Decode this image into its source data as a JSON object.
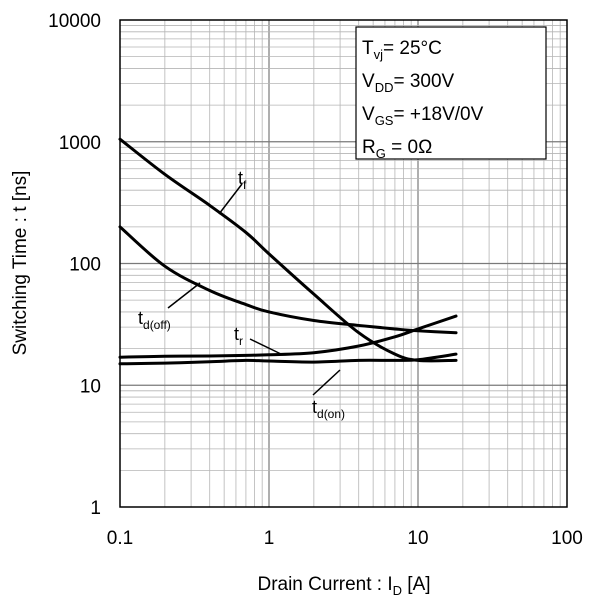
{
  "chart_data": {
    "type": "line",
    "title": "",
    "xlabel": {
      "main": "Drain Current : I",
      "sub": "D",
      "tail": " [A]"
    },
    "ylabel": "Switching Time : t [ns]",
    "x_scale": "log",
    "y_scale": "log",
    "xlim": [
      0.1,
      100
    ],
    "ylim": [
      1,
      10000
    ],
    "grid": true,
    "x_ticks": [
      "0.1",
      "1",
      "10",
      "100"
    ],
    "y_ticks": [
      "1",
      "10",
      "100",
      "1000",
      "10000"
    ],
    "conditions": [
      {
        "main": "T",
        "sub": "vj",
        "tail": "=   25°C"
      },
      {
        "main": "V",
        "sub": "DD",
        "tail": "= 300V"
      },
      {
        "main": "V",
        "sub": "GS",
        "tail": "= +18V/0V"
      },
      {
        "main": "R",
        "sub": "G",
        "tail": " =  0Ω"
      }
    ],
    "series": [
      {
        "name": {
          "main": "t",
          "sub": "f"
        },
        "x": [
          0.1,
          0.2,
          0.4,
          0.7,
          1,
          2,
          4,
          7,
          10,
          18
        ],
        "y": [
          1050,
          540,
          300,
          180,
          120,
          56,
          27,
          18,
          16,
          16
        ]
      },
      {
        "name": {
          "main": "t",
          "sub": "d(off)"
        },
        "x": [
          0.1,
          0.2,
          0.4,
          0.7,
          1,
          2,
          4,
          7,
          10,
          18
        ],
        "y": [
          200,
          95,
          60,
          46,
          40,
          34,
          31,
          29,
          28,
          27
        ]
      },
      {
        "name": {
          "main": "t",
          "sub": "r"
        },
        "x": [
          0.1,
          0.2,
          0.4,
          0.7,
          1,
          2,
          4,
          7,
          10,
          18
        ],
        "y": [
          17,
          17.3,
          17.4,
          17.6,
          17.8,
          18.5,
          21,
          25,
          29,
          37
        ]
      },
      {
        "name": {
          "main": "t",
          "sub": "d(on)"
        },
        "x": [
          0.1,
          0.2,
          0.4,
          0.7,
          1,
          2,
          4,
          7,
          10,
          18
        ],
        "y": [
          15,
          15.2,
          15.6,
          16,
          15.8,
          15.5,
          16,
          16,
          16.2,
          18
        ]
      }
    ]
  }
}
